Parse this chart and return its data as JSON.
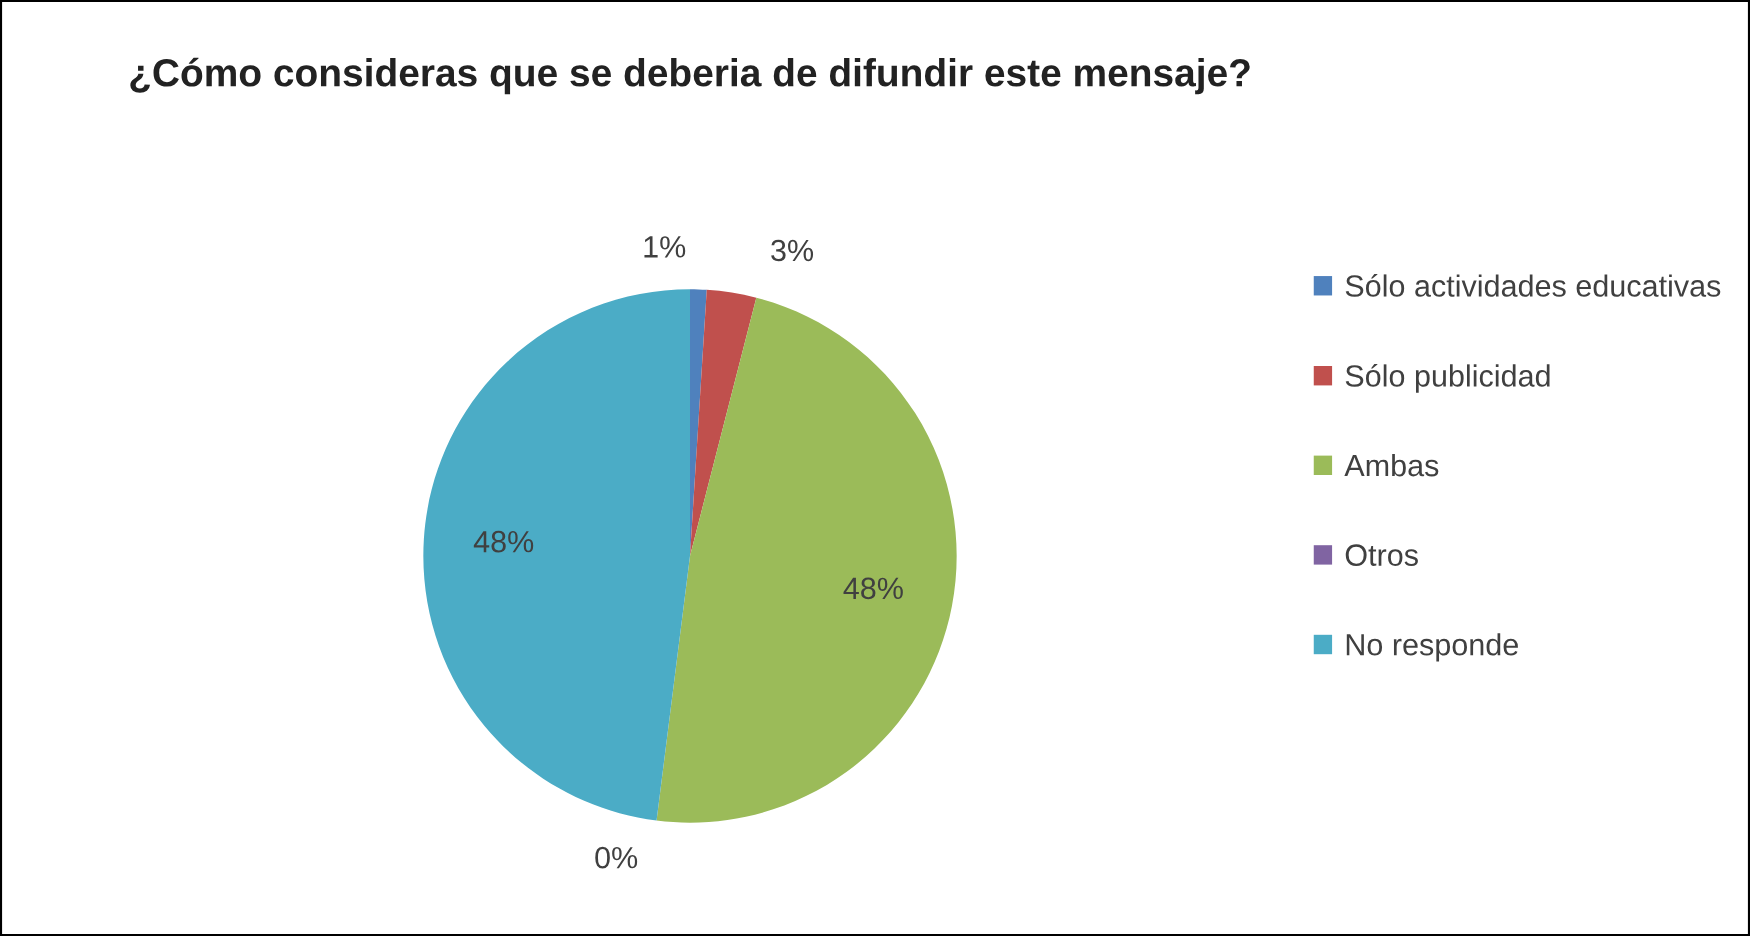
{
  "chart_data": {
    "type": "pie",
    "title": "¿Cómo consideras que se deberia de difundir este mensaje?",
    "categories": [
      "Sólo actividades educativas",
      "Sólo publicidad",
      "Ambas",
      "Otros",
      "No responde"
    ],
    "values": [
      1,
      3,
      48,
      0,
      48
    ],
    "value_labels": [
      "1%",
      "3%",
      "48%",
      "0%",
      "48%"
    ],
    "colors": [
      "#4f81bd",
      "#c0504d",
      "#9bbb59",
      "#8064a2",
      "#4bacc6"
    ],
    "legend": "right"
  }
}
